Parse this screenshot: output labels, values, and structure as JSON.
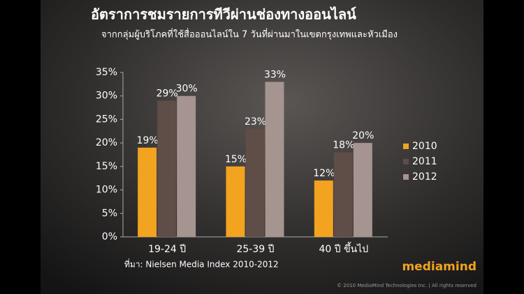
{
  "chart_data": {
    "type": "bar",
    "title": "อัตราการชมรายการทีวีผ่านช่องทางออนไลน์",
    "subtitle": "จากกลุ่มผู้บริโภคที่ใช้สื่อออนไลน์ใน 7 วันที่ผ่านมาในเขตกรุงเทพและหัวเมือง",
    "categories": [
      "19-24 ปี",
      "25-39 ปี",
      "40 ปี ขึ้นไป"
    ],
    "series": [
      {
        "name": "2010",
        "color": "#f2a31f",
        "values": [
          19,
          15,
          12
        ],
        "value_labels": [
          "19%",
          "15%",
          "12%"
        ]
      },
      {
        "name": "2011",
        "color": "#5f4d48",
        "values": [
          29,
          23,
          18
        ],
        "value_labels": [
          "29%",
          "23%",
          "18%"
        ]
      },
      {
        "name": "2012",
        "color": "#a5948f",
        "values": [
          30,
          33,
          20
        ],
        "value_labels": [
          "30%",
          "33%",
          "20%"
        ]
      }
    ],
    "ylim": [
      0,
      35
    ],
    "yticks": [
      {
        "value": 0,
        "label": "0%"
      },
      {
        "value": 5,
        "label": "5%"
      },
      {
        "value": 10,
        "label": "10%"
      },
      {
        "value": 15,
        "label": "15%"
      },
      {
        "value": 20,
        "label": "20%"
      },
      {
        "value": 25,
        "label": "25%"
      },
      {
        "value": 30,
        "label": "30%"
      },
      {
        "value": 35,
        "label": "35%"
      }
    ],
    "legend": "right",
    "source": "ที่มา: Nielsen Media Index 2010-2012"
  },
  "logo": "mediamind",
  "copyright": "© 2010 MediaMind Technologies Inc. | All rights reserved"
}
